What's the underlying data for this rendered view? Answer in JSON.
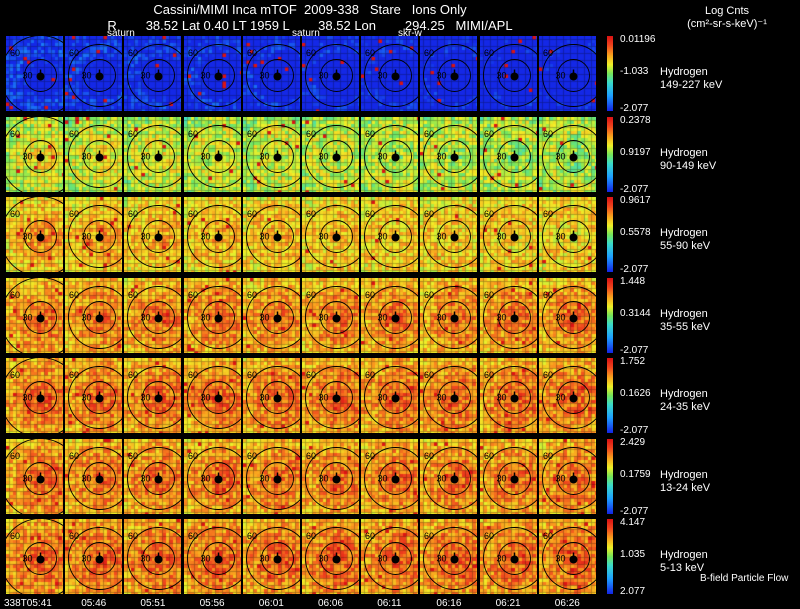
{
  "header": {
    "line1": "Cassini/MIMI Inca mTOF  2009-338   Stare   Ions Only",
    "line2": "R        38.52 Lat 0.40 LT 1959 L        38.52 Lon        294.25   MIMI/APL",
    "labels": [
      "saturn",
      "saturn",
      "skr-w"
    ],
    "log_title": "Log Cnts",
    "log_units": "(cm²-sr-s-keV)⁻¹"
  },
  "rows": [
    {
      "species": "Hydrogen",
      "energy": "149-227 keV",
      "max": "0.01196",
      "mid": "-1.033",
      "min": "-2.077",
      "level": 0.15,
      "blue": 0.55
    },
    {
      "species": "Hydrogen",
      "energy": "90-149 keV",
      "max": "0.2378",
      "mid": "0.9197",
      "min": "-2.077",
      "level": 0.7,
      "blue": 0.05
    },
    {
      "species": "Hydrogen",
      "energy": "55-90 keV",
      "max": "0.9617",
      "mid": "0.5578",
      "min": "-2.077",
      "level": 0.8,
      "blue": 0.02
    },
    {
      "species": "Hydrogen",
      "energy": "35-55 keV",
      "max": "1.448",
      "mid": "0.3144",
      "min": "-2.077",
      "level": 0.85,
      "blue": 0.01
    },
    {
      "species": "Hydrogen",
      "energy": "24-35 keV",
      "max": "1.752",
      "mid": "0.1626",
      "min": "-2.077",
      "level": 0.87,
      "blue": 0.01
    },
    {
      "species": "Hydrogen",
      "energy": "13-24 keV",
      "max": "2.429",
      "mid": "0.1759",
      "min": "-2.077",
      "level": 0.86,
      "blue": 0.01
    },
    {
      "species": "Hydrogen",
      "energy": "5-13 keV",
      "max": "4.147",
      "mid": "1.035",
      "min": "2.077",
      "level": 0.88,
      "blue": 0.01
    }
  ],
  "times": [
    "338T05:41",
    "05:46",
    "05:51",
    "05:56",
    "06:01",
    "06:06",
    "06:11",
    "06:16",
    "06:21",
    "06:26"
  ],
  "contour_labels": [
    "60",
    "30"
  ],
  "legend_text": "B-field Particle Flow"
}
